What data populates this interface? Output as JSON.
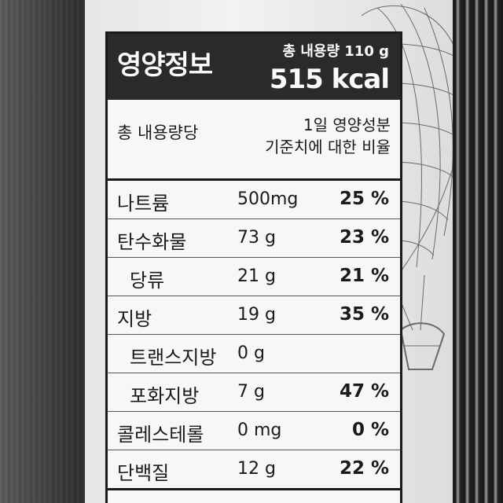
{
  "label": {
    "title": "영양정보",
    "total_amount": "총 내용량 110 g",
    "calories": "515 kcal",
    "basis_left": "총 내용량당",
    "basis_right_line1": "1일 영양성분",
    "basis_right_line2": "기준치에 대한 비율",
    "rows": [
      {
        "name": "나트륨",
        "amount": "500mg",
        "percent": "25 %"
      },
      {
        "name": "탄수화물",
        "amount": "73 g",
        "percent": "23 %"
      },
      {
        "name": "당류",
        "amount": "21 g",
        "percent": "21 %"
      },
      {
        "name": "지방",
        "amount": "19 g",
        "percent": "35 %"
      },
      {
        "name": "트랜스지방",
        "amount": "0 g",
        "percent": ""
      },
      {
        "name": "포화지방",
        "amount": "7 g",
        "percent": "47 %"
      },
      {
        "name": "콜레스테롤",
        "amount": "0 mg",
        "percent": "0 %"
      },
      {
        "name": "단백질",
        "amount": "12 g",
        "percent": "22 %"
      }
    ]
  },
  "colors": {
    "label_header_bg": "#2a2a2a",
    "label_bg": "#f7f7f7",
    "ink": "#1a1a1a"
  }
}
